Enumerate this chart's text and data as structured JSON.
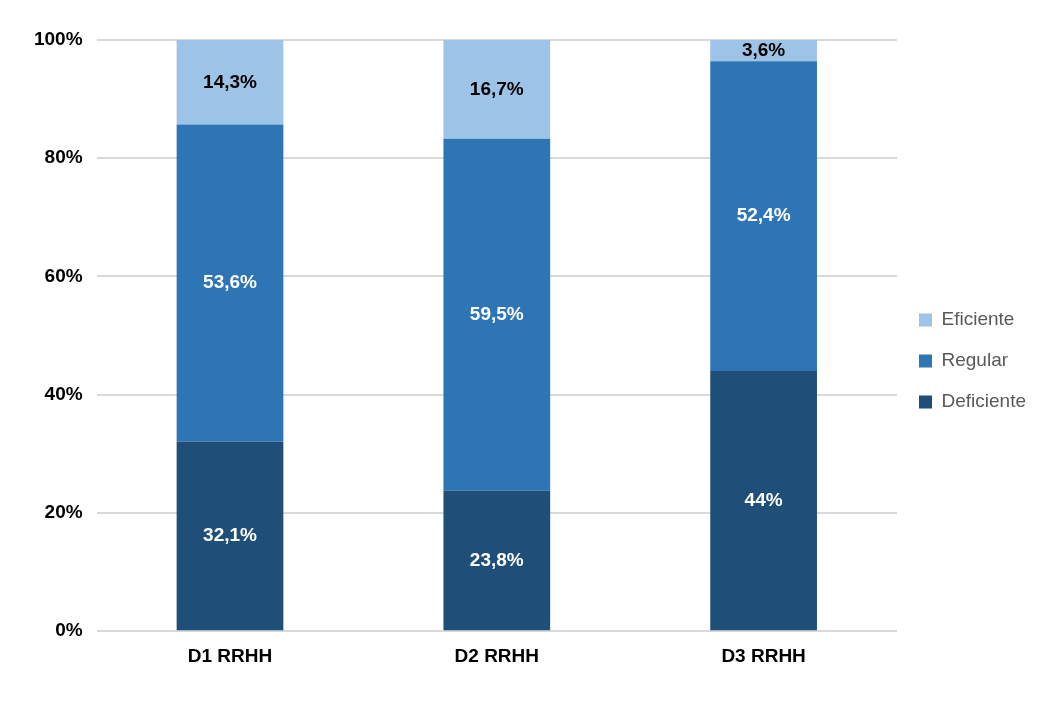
{
  "chart_data": {
    "type": "bar",
    "stacked": true,
    "categories": [
      "D1 RRHH",
      "D2 RRHH",
      "D3 RRHH"
    ],
    "series": [
      {
        "name": "Deficiente",
        "color": "#1f4e79",
        "values": [
          32.1,
          23.8,
          44
        ],
        "value_labels": [
          "32,1%",
          "23,8%",
          "44%"
        ]
      },
      {
        "name": "Regular",
        "color": "#2e75b6",
        "values": [
          53.6,
          59.5,
          52.4
        ],
        "value_labels": [
          "53,6%",
          "59,5%",
          "52,4%"
        ]
      },
      {
        "name": "Eficiente",
        "color": "#9dc3e6",
        "values": [
          14.3,
          16.7,
          3.6
        ],
        "value_labels": [
          "14,3%",
          "16,7%",
          "3,6%"
        ]
      }
    ],
    "ylim": [
      0,
      100
    ],
    "yticks": [
      {
        "value": 0,
        "label": "0%"
      },
      {
        "value": 20,
        "label": "20%"
      },
      {
        "value": 40,
        "label": "40%"
      },
      {
        "value": 60,
        "label": "60%"
      },
      {
        "value": 80,
        "label": "80%"
      },
      {
        "value": 100,
        "label": "100%"
      }
    ],
    "grid": "y",
    "legend": "right"
  }
}
